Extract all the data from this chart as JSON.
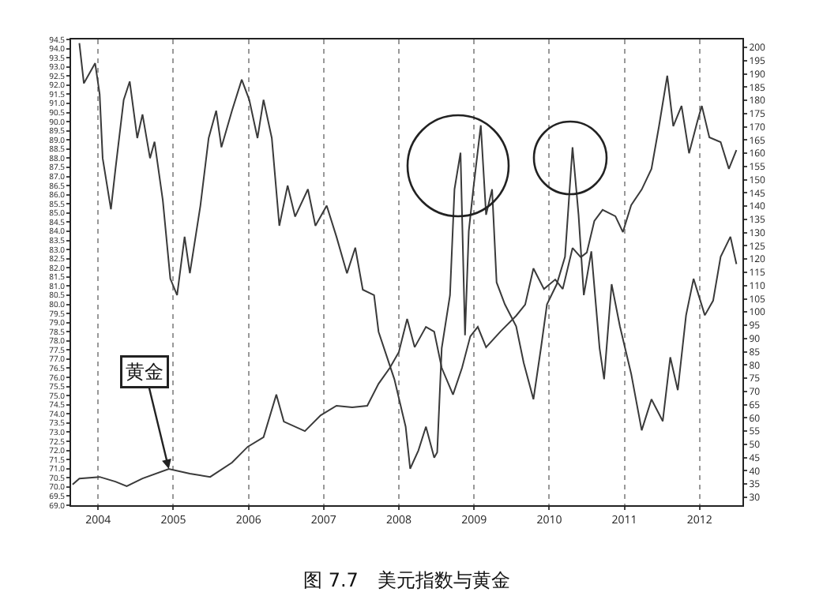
{
  "chart_data": {
    "type": "line",
    "title": "图 7.7　美元指数与黄金",
    "legend": false,
    "grid": "x",
    "line_style": "solid",
    "marker": "none",
    "xlim": [
      2003.64,
      2012.57
    ],
    "xticks": [
      2004,
      2005,
      2006,
      2007,
      2008,
      2009,
      2010,
      2011,
      2012
    ],
    "ylim": [
      69,
      94.5
    ],
    "yticks": [
      {
        "value": 69,
        "label": "69.0"
      },
      69.5,
      {
        "value": 70,
        "label": "70.0"
      },
      70.5,
      {
        "value": 71,
        "label": "71.0"
      },
      71.5,
      {
        "value": 72,
        "label": "72.0"
      },
      72.5,
      {
        "value": 73,
        "label": "73.0"
      },
      73.5,
      {
        "value": 74,
        "label": "74.0"
      },
      74.5,
      {
        "value": 75,
        "label": "75.0"
      },
      75.5,
      {
        "value": 76,
        "label": "76.0"
      },
      76.5,
      {
        "value": 77,
        "label": "77.0"
      },
      77.5,
      {
        "value": 78,
        "label": "78.0"
      },
      78.5,
      {
        "value": 79,
        "label": "79.0"
      },
      79.5,
      {
        "value": 80,
        "label": "80.0"
      },
      80.5,
      {
        "value": 81,
        "label": "81.0"
      },
      81.5,
      {
        "value": 82,
        "label": "82.0"
      },
      82.5,
      {
        "value": 83,
        "label": "83.0"
      },
      83.5,
      {
        "value": 84,
        "label": "84.0"
      },
      84.5,
      {
        "value": 85,
        "label": "85.0"
      },
      85.5,
      {
        "value": 86,
        "label": "86.0"
      },
      86.5,
      {
        "value": 87,
        "label": "87.0"
      },
      87.5,
      {
        "value": 88,
        "label": "88.0"
      },
      88.5,
      {
        "value": 89,
        "label": "89.0"
      },
      89.5,
      {
        "value": 90,
        "label": "90.0"
      },
      90.5,
      {
        "value": 91,
        "label": "91.0"
      },
      91.5,
      {
        "value": 92,
        "label": "92.0"
      },
      92.5,
      {
        "value": 93,
        "label": "93.0"
      },
      93.5,
      {
        "value": 94,
        "label": "94.0"
      },
      94.5
    ],
    "y2lim": [
      27,
      203
    ],
    "y2ticks": [
      30,
      35,
      40,
      45,
      50,
      55,
      60,
      65,
      70,
      75,
      80,
      85,
      90,
      95,
      100,
      105,
      110,
      115,
      120,
      125,
      130,
      135,
      140,
      145,
      150,
      155,
      160,
      165,
      170,
      175,
      180,
      185,
      190,
      195,
      200
    ],
    "series": [
      {
        "color": "#3a3a3a",
        "x": [
          2003.75,
          2003.81,
          2003.96,
          2004.02,
          2004.06,
          2004.17,
          2004.23,
          2004.34,
          2004.42,
          2004.52,
          2004.59,
          2004.69,
          2004.75,
          2004.86,
          2004.96,
          2005.05,
          2005.15,
          2005.22,
          2005.36,
          2005.47,
          2005.57,
          2005.64,
          2005.78,
          2005.91,
          2006.01,
          2006.12,
          2006.2,
          2006.31,
          2006.41,
          2006.52,
          2006.62,
          2006.79,
          2006.89,
          2007.04,
          2007.17,
          2007.31,
          2007.42,
          2007.52,
          2007.67,
          2007.73,
          2007.94,
          2008.09,
          2008.15,
          2008.26,
          2008.36,
          2008.47,
          2008.51,
          2008.57,
          2008.68,
          2008.74,
          2008.82,
          2008.88,
          2008.93,
          2008.99,
          2009.09,
          2009.16,
          2009.24,
          2009.3,
          2009.41,
          2009.56,
          2009.66,
          2009.79,
          2009.89,
          2009.97,
          2010.1,
          2010.21,
          2010.31,
          2010.39,
          2010.46,
          2010.56,
          2010.67,
          2010.73,
          2010.83,
          2010.94,
          2011.09,
          2011.23,
          2011.36,
          2011.51,
          2011.61,
          2011.71,
          2011.82,
          2011.92,
          2012.07,
          2012.18,
          2012.28,
          2012.41,
          2012.49
        ],
        "values": [
          94.3,
          92.1,
          93.2,
          91.5,
          88.0,
          85.2,
          87.4,
          91.2,
          92.2,
          89.1,
          90.4,
          88.0,
          88.9,
          85.7,
          81.4,
          80.5,
          83.7,
          81.7,
          85.4,
          89.1,
          90.6,
          88.6,
          90.6,
          92.3,
          91.2,
          89.1,
          91.2,
          89.1,
          84.3,
          86.5,
          84.8,
          86.3,
          84.3,
          85.4,
          83.7,
          81.7,
          83.1,
          80.8,
          80.5,
          78.5,
          75.9,
          73.3,
          71.0,
          72.0,
          73.3,
          71.6,
          71.9,
          77.6,
          80.5,
          86.3,
          88.3,
          78.3,
          84.0,
          86.3,
          89.8,
          84.9,
          86.3,
          81.2,
          80.0,
          78.8,
          76.8,
          74.8,
          77.6,
          80.0,
          81.1,
          82.6,
          88.6,
          84.9,
          80.5,
          82.9,
          77.6,
          75.9,
          81.1,
          78.8,
          76.2,
          73.1,
          74.8,
          73.6,
          77.1,
          75.3,
          79.4,
          81.4,
          79.4,
          80.2,
          82.6,
          83.7,
          82.2
        ]
      },
      {
        "name": "黄金",
        "axis": "y2",
        "color": "#3a3a3a",
        "x": [
          2003.66,
          2003.75,
          2004.02,
          2004.23,
          2004.38,
          2004.59,
          2004.94,
          2005.22,
          2005.49,
          2005.78,
          2005.99,
          2006.2,
          2006.37,
          2006.47,
          2006.75,
          2006.96,
          2007.17,
          2007.38,
          2007.58,
          2007.73,
          2007.88,
          2008.0,
          2008.11,
          2008.21,
          2008.36,
          2008.47,
          2008.57,
          2008.72,
          2008.84,
          2008.95,
          2009.05,
          2009.16,
          2009.35,
          2009.56,
          2009.68,
          2009.79,
          2009.93,
          2010.08,
          2010.18,
          2010.31,
          2010.42,
          2010.5,
          2010.6,
          2010.71,
          2010.88,
          2010.98,
          2011.09,
          2011.23,
          2011.36,
          2011.46,
          2011.57,
          2011.65,
          2011.76,
          2011.86,
          2011.97,
          2012.03,
          2012.13,
          2012.28,
          2012.39,
          2012.49
        ],
        "values": [
          34.8,
          37.1,
          37.7,
          35.9,
          34.2,
          37.1,
          40.7,
          38.9,
          37.7,
          43.1,
          49.1,
          52.7,
          68.8,
          58.6,
          55.0,
          61.0,
          64.6,
          64.0,
          64.6,
          72.9,
          78.9,
          84.9,
          97.4,
          86.7,
          94.4,
          92.6,
          78.9,
          68.8,
          78.9,
          90.8,
          94.4,
          86.7,
          92.6,
          98.6,
          102.8,
          116.5,
          108.7,
          112.3,
          108.7,
          124.2,
          120.7,
          122.5,
          134.4,
          138.6,
          136.2,
          130.2,
          140.4,
          146.3,
          154.1,
          170.2,
          189.3,
          170.2,
          177.9,
          160.0,
          172.0,
          177.9,
          166.0,
          164.2,
          154.1,
          161.2
        ]
      }
    ]
  }
}
